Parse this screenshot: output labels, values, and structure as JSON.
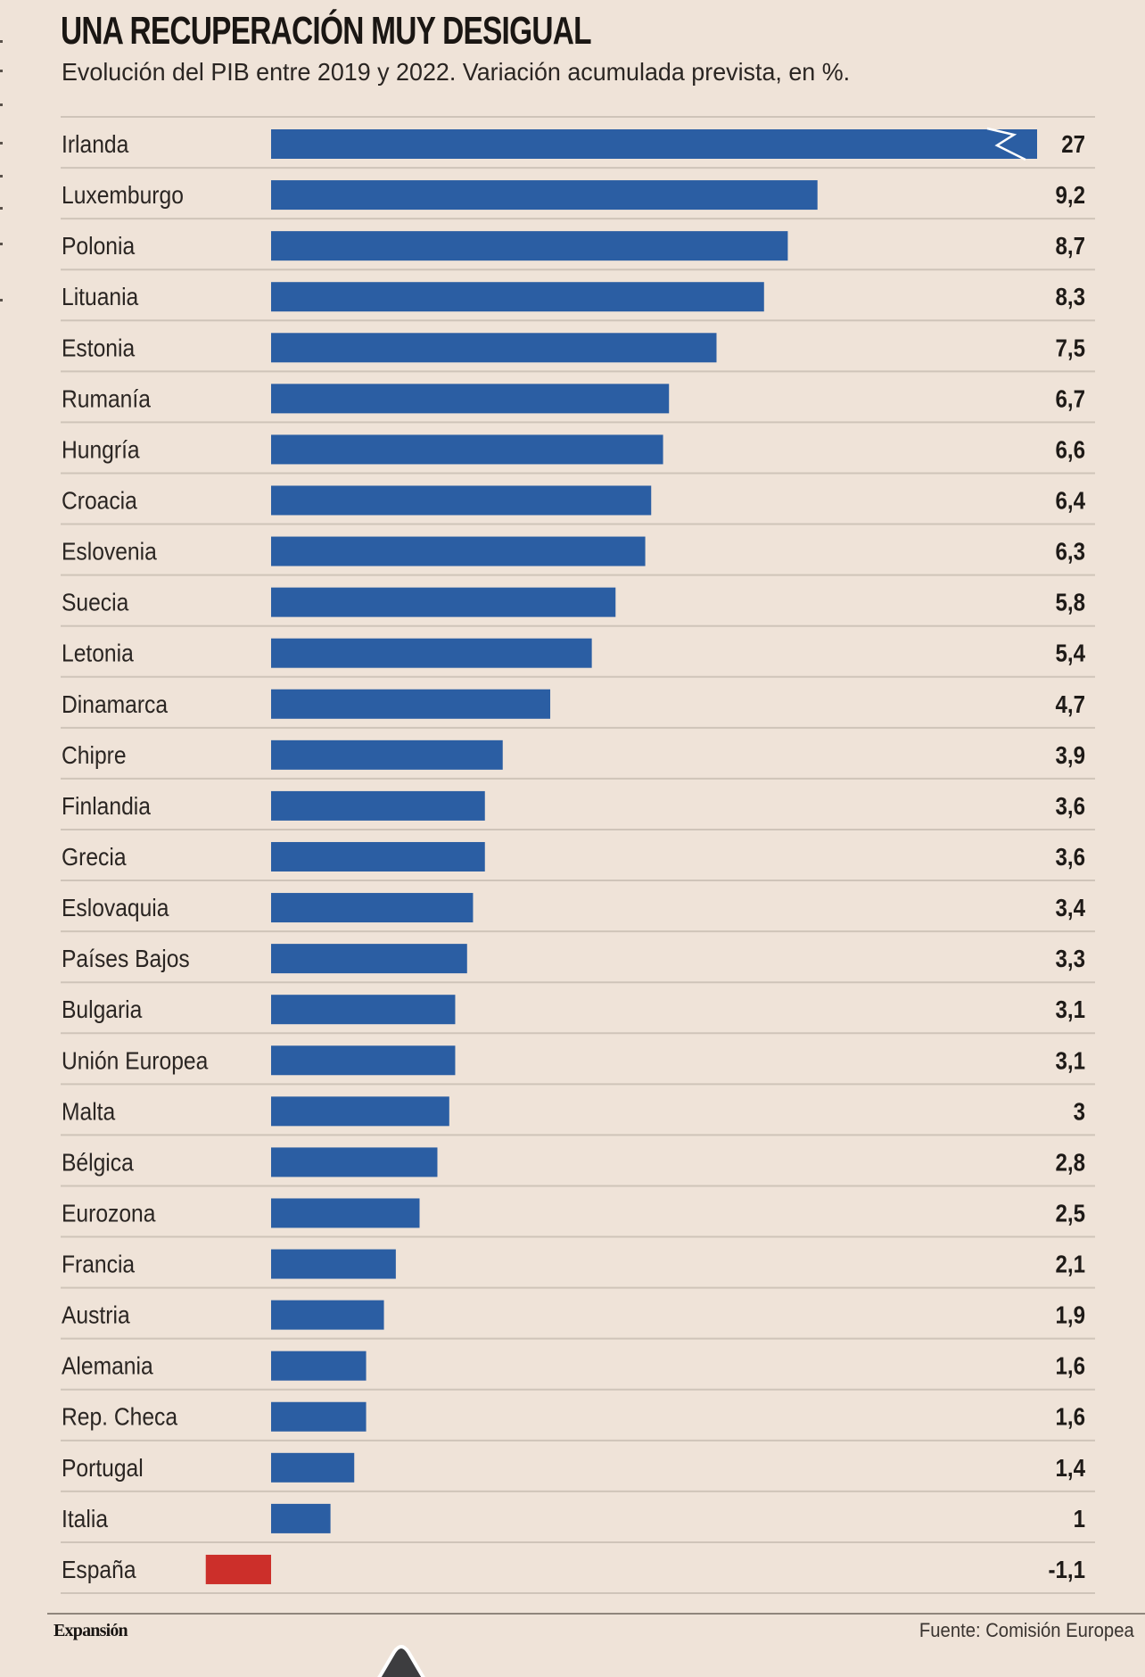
{
  "header": {
    "title": "UNA RECUPERACIÓN MUY DESIGUAL",
    "subtitle": "Evolución del PIB entre 2019 y 2022. Variación acumulada prevista, en %."
  },
  "footer": {
    "brand": "Expansión",
    "source": "Fuente: Comisión Europea"
  },
  "colors": {
    "positive_bar": "#2b5ea3",
    "negative_bar": "#cc2f2a",
    "divider": "#cfc4b9",
    "background": "#efe3d8"
  },
  "icons": {
    "scroll_top": "scroll-up-icon"
  },
  "chart_data": {
    "type": "bar",
    "orientation": "horizontal",
    "title": "UNA RECUPERACIÓN MUY DESIGUAL",
    "subtitle": "Evolución del PIB entre 2019 y 2022. Variación acumulada prevista, en %.",
    "xlabel": "",
    "ylabel": "",
    "unit": "%",
    "grid": false,
    "legend": "none",
    "broken_axis_bar": "Irlanda",
    "categories": [
      "Irlanda",
      "Luxemburgo",
      "Polonia",
      "Lituania",
      "Estonia",
      "Rumanía",
      "Hungría",
      "Croacia",
      "Eslovenia",
      "Suecia",
      "Letonia",
      "Dinamarca",
      "Chipre",
      "Finlandia",
      "Grecia",
      "Eslovaquia",
      "Países Bajos",
      "Bulgaria",
      "Unión Europea",
      "Malta",
      "Bélgica",
      "Eurozona",
      "Francia",
      "Austria",
      "Alemania",
      "Rep. Checa",
      "Portugal",
      "Italia",
      "España"
    ],
    "values": [
      27,
      9.2,
      8.7,
      8.3,
      7.5,
      6.7,
      6.6,
      6.4,
      6.3,
      5.8,
      5.4,
      4.7,
      3.9,
      3.6,
      3.6,
      3.4,
      3.3,
      3.1,
      3.1,
      3,
      2.8,
      2.5,
      2.1,
      1.9,
      1.6,
      1.6,
      1.4,
      1,
      -1.1
    ],
    "value_labels": [
      "27",
      "9,2",
      "8,7",
      "8,3",
      "7,5",
      "6,7",
      "6,6",
      "6,4",
      "6,3",
      "5,8",
      "5,4",
      "4,7",
      "3,9",
      "3,6",
      "3,6",
      "3,4",
      "3,3",
      "3,1",
      "3,1",
      "3",
      "2,8",
      "2,5",
      "2,1",
      "1,9",
      "1,6",
      "1,6",
      "1,4",
      "1",
      "-1,1"
    ],
    "highlight": "España"
  }
}
